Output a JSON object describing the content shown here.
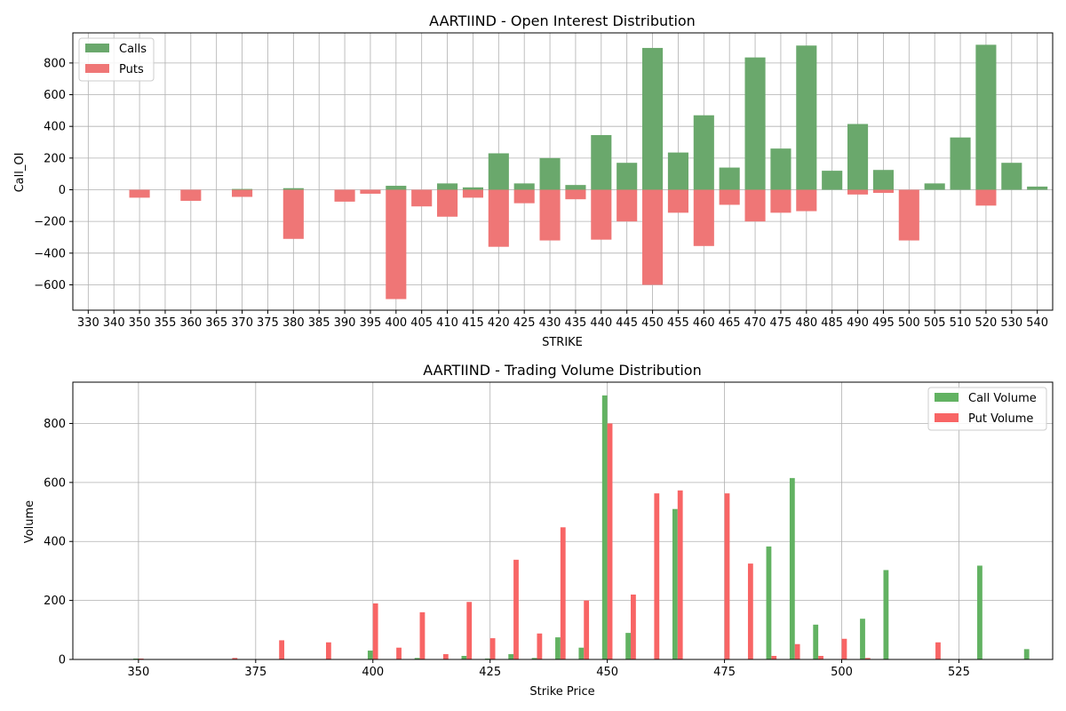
{
  "colors": {
    "calls": "#6aa86c",
    "puts": "#ef7676",
    "call_volume": "#62b262",
    "put_volume": "#f86565",
    "grid": "#b0b0b0"
  },
  "chart_data": [
    {
      "type": "bar",
      "title": "AARTIIND - Open Interest Distribution",
      "xlabel": "STRIKE",
      "ylabel": "Call_OI",
      "categories": [
        "330",
        "340",
        "350",
        "355",
        "360",
        "365",
        "370",
        "375",
        "380",
        "385",
        "390",
        "395",
        "400",
        "405",
        "410",
        "415",
        "420",
        "425",
        "430",
        "435",
        "440",
        "445",
        "450",
        "455",
        "460",
        "465",
        "470",
        "475",
        "480",
        "485",
        "490",
        "495",
        "500",
        "505",
        "510",
        "520",
        "530",
        "540"
      ],
      "series": [
        {
          "name": "Calls",
          "values": [
            0,
            0,
            0,
            0,
            0,
            0,
            5,
            0,
            10,
            0,
            0,
            0,
            25,
            0,
            40,
            15,
            230,
            40,
            200,
            30,
            345,
            170,
            895,
            235,
            470,
            140,
            835,
            260,
            910,
            120,
            415,
            125,
            0,
            40,
            330,
            915,
            170,
            20
          ]
        },
        {
          "name": "Puts",
          "values": [
            0,
            0,
            -50,
            0,
            -70,
            0,
            -45,
            0,
            -310,
            0,
            -75,
            -25,
            -690,
            -105,
            -170,
            -50,
            -360,
            -85,
            -320,
            -60,
            -315,
            -200,
            -600,
            -145,
            -355,
            -95,
            -200,
            -145,
            -135,
            0,
            -30,
            -20,
            -320,
            0,
            0,
            -100,
            0,
            0
          ]
        }
      ],
      "ylim": [
        -760,
        990
      ],
      "yticks": [
        -600,
        -400,
        -200,
        0,
        200,
        400,
        600,
        800
      ],
      "grid": true,
      "legend": "upper-left"
    },
    {
      "type": "bar",
      "title": "AARTIIND - Trading Volume Distribution",
      "xlabel": "Strike Price",
      "ylabel": "Volume",
      "x": [
        340,
        350,
        355,
        360,
        365,
        370,
        375,
        380,
        385,
        390,
        395,
        400,
        405,
        410,
        415,
        420,
        425,
        430,
        435,
        440,
        445,
        450,
        455,
        460,
        465,
        470,
        475,
        480,
        485,
        490,
        495,
        500,
        505,
        510,
        520,
        530,
        540
      ],
      "series": [
        {
          "name": "Call Volume",
          "values": [
            0,
            3,
            0,
            0,
            0,
            0,
            0,
            0,
            0,
            0,
            0,
            30,
            0,
            5,
            0,
            12,
            3,
            18,
            5,
            75,
            40,
            895,
            90,
            0,
            510,
            0,
            0,
            0,
            383,
            615,
            118,
            0,
            138,
            303,
            0,
            318,
            35
          ]
        },
        {
          "name": "Put Volume",
          "values": [
            0,
            3,
            0,
            0,
            0,
            5,
            0,
            65,
            0,
            58,
            0,
            190,
            40,
            160,
            18,
            195,
            72,
            338,
            88,
            448,
            200,
            800,
            220,
            563,
            573,
            0,
            563,
            325,
            12,
            52,
            12,
            70,
            5,
            0,
            58,
            0,
            0
          ]
        }
      ],
      "xlim": [
        336,
        545
      ],
      "xticks": [
        350,
        375,
        400,
        425,
        450,
        475,
        500,
        525
      ],
      "ylim": [
        0,
        940
      ],
      "yticks": [
        0,
        200,
        400,
        600,
        800
      ],
      "grid": true,
      "legend": "upper-right"
    }
  ]
}
